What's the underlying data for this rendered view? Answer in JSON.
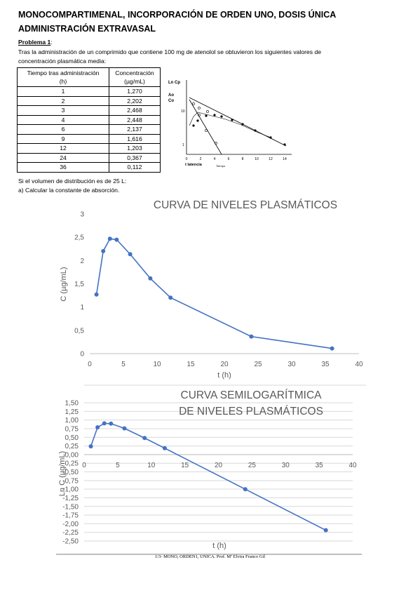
{
  "header": {
    "title_lines": [
      "MONOCOMPARTIMENAL, INCORPORACIÓN DE ORDEN UNO, DOSIS ÚNICA",
      "ADMINISTRACIÓN EXTRAVASAL"
    ]
  },
  "problem": {
    "label": "Problema 1",
    "colon": ":",
    "intro_lines": [
      "Tras la administración de un comprimido que contiene 100 mg de atenolol se obtuvieron los siguientes valores de",
      "concentración plasmática media:"
    ]
  },
  "table": {
    "header": [
      [
        "Tiempo tras administración",
        "(h)"
      ],
      [
        "Concentración",
        "(µg/mL)"
      ]
    ],
    "rows": [
      [
        "1",
        "1,270"
      ],
      [
        "2",
        "2,202"
      ],
      [
        "3",
        "2,468"
      ],
      [
        "4",
        "2,448"
      ],
      [
        "6",
        "2,137"
      ],
      [
        "9",
        "1,616"
      ],
      [
        "12",
        "1,203"
      ],
      [
        "24",
        "0,367"
      ],
      [
        "36",
        "0,112"
      ]
    ]
  },
  "figure": {
    "y_label": "Ln Cp",
    "ao": "Ao",
    "co": "Co",
    "ten": "10",
    "one": "1",
    "latency": "t latencia",
    "x_label": "Tiempo",
    "x_ticks": [
      "0",
      "2",
      "4",
      "6",
      "8",
      "10",
      "12",
      "14"
    ]
  },
  "questions": [
    "Si el volumen de distribución es de 25 L:",
    "a) Calcular la constante de absorción."
  ],
  "chart_data": [
    {
      "type": "line",
      "title": [
        "CURVA DE NIVELES PLASMÁTICOS"
      ],
      "x_label": "t (h)",
      "y_label": "C  (µg/mL)",
      "x": [
        1,
        2,
        3,
        4,
        6,
        9,
        12,
        24,
        36
      ],
      "series": [
        {
          "color": "#4472c4",
          "values": [
            1.27,
            2.202,
            2.468,
            2.448,
            2.137,
            1.616,
            1.203,
            0.367,
            0.112
          ]
        }
      ],
      "xlim": [
        0,
        40
      ],
      "xticks": [
        0,
        5,
        10,
        15,
        20,
        25,
        30,
        35,
        40
      ],
      "ylim": [
        0,
        3
      ],
      "yticks": [
        0,
        {
          "value": 0.5,
          "label": "0,5"
        },
        1,
        {
          "value": 1.5,
          "label": "1,5"
        },
        2,
        {
          "value": 2.5,
          "label": "2,5"
        },
        3
      ],
      "grid": false
    },
    {
      "type": "line",
      "title": [
        "CURVA SEMILOGARÍTMICA",
        "DE NIVELES PLASMÁTICOS"
      ],
      "x_label": "t (h)",
      "y_label": "Ln C  (µg/mL)",
      "x": [
        1,
        2,
        3,
        4,
        6,
        9,
        12,
        24,
        36
      ],
      "series": [
        {
          "color": "#4472c4",
          "values": [
            0.239,
            0.789,
            0.903,
            0.895,
            0.759,
            0.48,
            0.185,
            -1.002,
            -2.189
          ]
        }
      ],
      "xlim": [
        0,
        40
      ],
      "xticks": [
        0,
        5,
        10,
        15,
        20,
        25,
        30,
        35,
        40
      ],
      "ylim": [
        -2.5,
        1.5
      ],
      "yticks": [
        {
          "value": -2.5,
          "label": "-2,50"
        },
        {
          "value": -2.25,
          "label": "-2,25"
        },
        {
          "value": -2,
          "label": "-2,00"
        },
        {
          "value": -1.75,
          "label": "-1,75"
        },
        {
          "value": -1.5,
          "label": "-1,50"
        },
        {
          "value": -1.25,
          "label": "-1,25"
        },
        {
          "value": -1,
          "label": "-1,00"
        },
        {
          "value": -0.75,
          "label": "-0,75"
        },
        {
          "value": -0.5,
          "label": "-0,50"
        },
        {
          "value": -0.25,
          "label": "-0,25"
        },
        {
          "value": 0,
          "label": "0,00"
        },
        {
          "value": 0.25,
          "label": "0,25"
        },
        {
          "value": 0.5,
          "label": "0,50"
        },
        {
          "value": 0.75,
          "label": "0,75"
        },
        {
          "value": 1,
          "label": "1,00"
        },
        {
          "value": 1.25,
          "label": "1,25"
        },
        {
          "value": 1.5,
          "label": "1,50"
        }
      ],
      "grid": true
    }
  ],
  "footer": "1/3- MONO, ORDEN1, UNICA. Prof. Mª Elvira Franco Gil"
}
